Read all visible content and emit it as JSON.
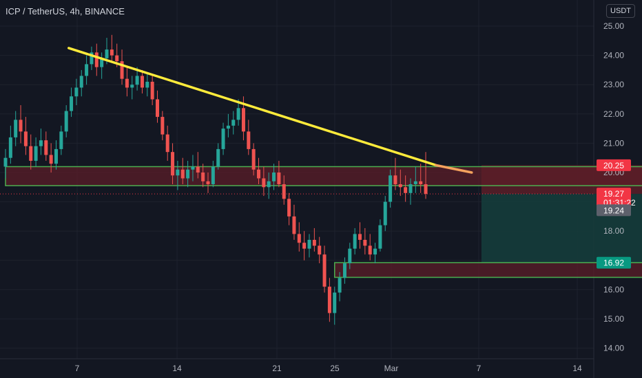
{
  "header": {
    "title": "ICP / TetherUS, 4h, BINANCE",
    "currency": "USDT"
  },
  "colors": {
    "background": "#131722",
    "grid": "#1e222d",
    "up": "#26a69a",
    "down": "#ef5350",
    "trendline": "#ffeb3b",
    "zone_border": "#4caf50",
    "zone_fill": "#5b1e28",
    "target_fill": "#153c3b"
  },
  "chart_data": {
    "type": "candlestick",
    "title": "",
    "ylim": [
      13.7,
      25.4
    ],
    "y_ticks": [
      14,
      15,
      16,
      17,
      18,
      19,
      20,
      21,
      22,
      23,
      24,
      25
    ],
    "y_tick_labels": [
      "14.00",
      "15.00",
      "16.00",
      "17.00",
      "18.00",
      "19.00",
      "20.00",
      "21.00",
      "22.00",
      "23.00",
      "24.00",
      "25.00"
    ],
    "x_tick_labels": [
      "7",
      "14",
      "21",
      "25",
      "Mar",
      "7",
      "14"
    ],
    "grid": true,
    "candles": [
      [
        20.2,
        20.8,
        19.8,
        20.5
      ],
      [
        20.5,
        21.6,
        20.3,
        21.2
      ],
      [
        21.2,
        22.1,
        20.9,
        21.8
      ],
      [
        21.8,
        22.3,
        21.0,
        21.4
      ],
      [
        21.4,
        21.9,
        20.6,
        20.9
      ],
      [
        20.9,
        21.3,
        20.1,
        20.4
      ],
      [
        20.4,
        21.2,
        20.2,
        20.9
      ],
      [
        20.9,
        21.5,
        20.6,
        21.1
      ],
      [
        21.1,
        21.4,
        20.4,
        20.6
      ],
      [
        20.6,
        21.0,
        20.0,
        20.3
      ],
      [
        20.3,
        21.1,
        20.1,
        20.8
      ],
      [
        20.8,
        21.6,
        20.6,
        21.4
      ],
      [
        21.4,
        22.3,
        21.2,
        22.1
      ],
      [
        22.1,
        22.9,
        21.9,
        22.6
      ],
      [
        22.6,
        23.2,
        22.3,
        22.9
      ],
      [
        22.9,
        23.5,
        22.6,
        23.3
      ],
      [
        23.3,
        24.0,
        23.0,
        23.7
      ],
      [
        23.7,
        24.3,
        23.5,
        24.1
      ],
      [
        24.1,
        24.4,
        23.3,
        23.6
      ],
      [
        23.6,
        24.1,
        23.2,
        23.9
      ],
      [
        23.9,
        24.6,
        23.7,
        24.2
      ],
      [
        24.2,
        24.7,
        23.8,
        24.0
      ],
      [
        24.0,
        24.4,
        23.6,
        23.8
      ],
      [
        23.8,
        24.2,
        23.0,
        23.2
      ],
      [
        23.2,
        23.6,
        22.6,
        22.9
      ],
      [
        22.9,
        23.3,
        22.5,
        23.0
      ],
      [
        23.0,
        23.6,
        22.8,
        23.3
      ],
      [
        23.3,
        23.5,
        22.7,
        22.9
      ],
      [
        22.9,
        23.4,
        22.6,
        23.1
      ],
      [
        23.1,
        23.3,
        22.3,
        22.5
      ],
      [
        22.5,
        22.8,
        21.7,
        21.9
      ],
      [
        21.9,
        22.1,
        21.1,
        21.3
      ],
      [
        21.3,
        21.6,
        20.4,
        20.7
      ],
      [
        20.7,
        21.0,
        19.6,
        19.9
      ],
      [
        19.9,
        20.4,
        19.4,
        20.1
      ],
      [
        20.1,
        20.5,
        19.6,
        19.8
      ],
      [
        19.8,
        20.4,
        19.5,
        20.1
      ],
      [
        20.1,
        20.6,
        19.7,
        20.2
      ],
      [
        20.2,
        20.7,
        19.8,
        20.0
      ],
      [
        20.0,
        20.3,
        19.5,
        19.7
      ],
      [
        19.7,
        20.0,
        19.3,
        19.6
      ],
      [
        19.6,
        20.4,
        19.5,
        20.2
      ],
      [
        20.2,
        21.0,
        20.1,
        20.8
      ],
      [
        20.8,
        21.7,
        20.6,
        21.5
      ],
      [
        21.5,
        22.0,
        21.2,
        21.6
      ],
      [
        21.6,
        22.1,
        21.3,
        21.8
      ],
      [
        21.8,
        22.5,
        21.6,
        22.2
      ],
      [
        22.2,
        22.6,
        21.1,
        21.4
      ],
      [
        21.4,
        21.8,
        20.6,
        20.8
      ],
      [
        20.8,
        21.0,
        19.9,
        20.1
      ],
      [
        20.1,
        20.5,
        19.6,
        19.8
      ],
      [
        19.8,
        20.2,
        19.2,
        19.5
      ],
      [
        19.5,
        20.0,
        19.1,
        19.7
      ],
      [
        19.7,
        20.3,
        19.4,
        20.0
      ],
      [
        20.0,
        20.4,
        19.5,
        19.6
      ],
      [
        19.6,
        19.9,
        18.9,
        19.1
      ],
      [
        19.1,
        19.3,
        18.2,
        18.5
      ],
      [
        18.5,
        18.9,
        17.7,
        17.9
      ],
      [
        17.9,
        18.3,
        17.3,
        17.6
      ],
      [
        17.6,
        18.0,
        17.0,
        17.4
      ],
      [
        17.4,
        17.9,
        17.1,
        17.7
      ],
      [
        17.7,
        18.1,
        17.3,
        17.5
      ],
      [
        17.5,
        17.8,
        16.9,
        17.2
      ],
      [
        17.2,
        17.5,
        15.9,
        16.1
      ],
      [
        16.1,
        16.4,
        14.9,
        15.2
      ],
      [
        15.2,
        16.1,
        14.8,
        15.9
      ],
      [
        15.9,
        16.6,
        15.6,
        16.4
      ],
      [
        16.4,
        17.1,
        16.2,
        16.9
      ],
      [
        16.9,
        17.6,
        16.7,
        17.4
      ],
      [
        17.4,
        18.1,
        17.2,
        17.9
      ],
      [
        17.9,
        18.3,
        17.4,
        17.7
      ],
      [
        17.7,
        18.1,
        17.2,
        17.5
      ],
      [
        17.5,
        17.9,
        17.0,
        17.2
      ],
      [
        17.2,
        17.6,
        16.9,
        17.4
      ],
      [
        17.4,
        18.4,
        17.3,
        18.2
      ],
      [
        18.2,
        19.2,
        18.0,
        19.0
      ],
      [
        19.0,
        20.1,
        18.8,
        19.9
      ],
      [
        19.9,
        20.5,
        19.4,
        19.6
      ],
      [
        19.6,
        20.1,
        19.2,
        19.5
      ],
      [
        19.5,
        19.9,
        19.0,
        19.3
      ],
      [
        19.3,
        19.8,
        18.9,
        19.6
      ],
      [
        19.6,
        20.2,
        19.3,
        19.7
      ],
      [
        19.7,
        20.3,
        19.3,
        19.6
      ],
      [
        19.6,
        20.7,
        19.1,
        19.27
      ]
    ],
    "trendline": {
      "start": [
        5,
        24.25
      ],
      "end": [
        85,
        20.25
      ]
    },
    "zones": [
      {
        "name": "upper-resistance-zone",
        "x_start": 0,
        "x_end": 130,
        "y_top": 20.2,
        "y_bottom": 19.55
      },
      {
        "name": "lower-support-zone",
        "x_start": 65,
        "x_end": 147,
        "y_top": 16.92,
        "y_bottom": 16.42
      }
    ],
    "position": {
      "entry": 19.27,
      "stop": 20.25,
      "target": 16.92,
      "x_start": 94,
      "x_end": 147
    },
    "price_labels": [
      {
        "name": "stop-price-label",
        "text": "20.25",
        "value": 20.25,
        "color": "#f23645"
      },
      {
        "name": "last-price-label",
        "text": "19.27",
        "value": 19.27,
        "color": "#f23645",
        "subtext": "01:31:22"
      },
      {
        "name": "prev-close-label",
        "text": "19.24",
        "value": 19.24,
        "color": "#5d606b"
      },
      {
        "name": "target-price-label",
        "text": "16.92",
        "value": 16.92,
        "color": "#089981"
      }
    ]
  }
}
